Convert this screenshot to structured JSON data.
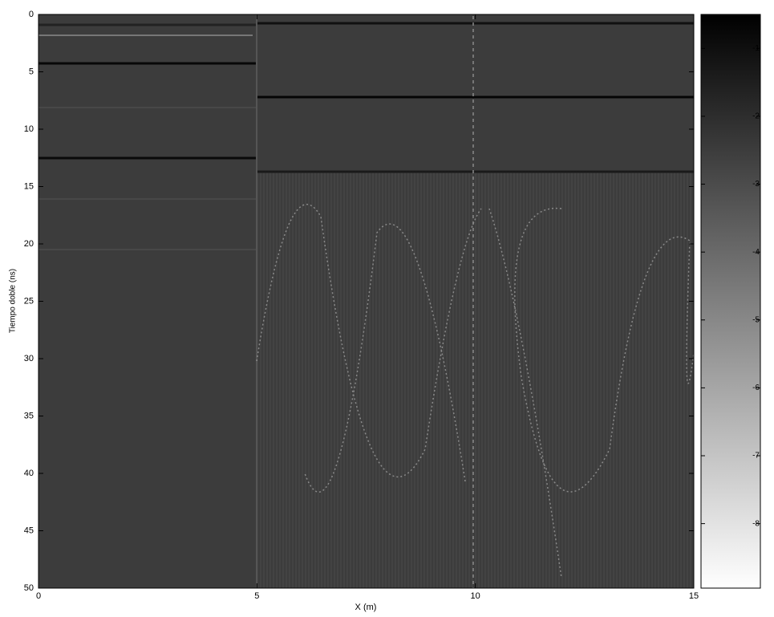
{
  "chart_data": {
    "type": "heatmap",
    "xlabel": "X (m)",
    "ylabel": "Tiempo doble (ns)",
    "xlim": [
      0,
      15
    ],
    "xticks": [
      0,
      5,
      10,
      15
    ],
    "ylim": [
      0,
      50
    ],
    "yticks": [
      0,
      5,
      10,
      15,
      20,
      25,
      30,
      35,
      40,
      45,
      50
    ],
    "y_reversed": true,
    "colorbar": {
      "clim": [
        -8.95,
        -0.5
      ],
      "ticks": [
        -1,
        -2,
        -3,
        -4,
        -5,
        -6,
        -7,
        -8
      ],
      "colors": [
        "#ffffff",
        "#000000"
      ]
    }
  }
}
